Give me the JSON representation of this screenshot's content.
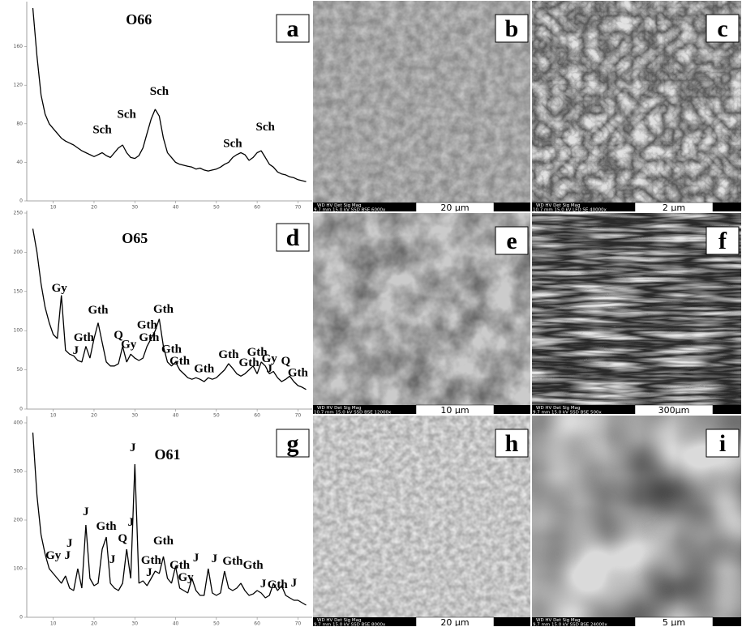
{
  "chart_data": [
    {
      "type": "line",
      "panel": "a",
      "title": "O66",
      "x": [
        5,
        6,
        7,
        8,
        9,
        10,
        11,
        12,
        13,
        14,
        15,
        16,
        17,
        18,
        19,
        20,
        21,
        22,
        23,
        24,
        25,
        26,
        27,
        28,
        29,
        30,
        31,
        32,
        33,
        34,
        35,
        36,
        37,
        38,
        39,
        40,
        41,
        42,
        43,
        44,
        45,
        46,
        47,
        48,
        49,
        50,
        51,
        52,
        53,
        54,
        55,
        56,
        57,
        58,
        59,
        60,
        61,
        62,
        63,
        64,
        65,
        66,
        67,
        68,
        69,
        70,
        71,
        72
      ],
      "series": [
        {
          "color": "#000000",
          "values": [
            200,
            150,
            110,
            90,
            80,
            75,
            70,
            65,
            62,
            60,
            58,
            55,
            52,
            50,
            48,
            46,
            48,
            50,
            47,
            45,
            50,
            55,
            58,
            50,
            45,
            44,
            47,
            55,
            70,
            85,
            95,
            88,
            65,
            50,
            45,
            40,
            38,
            37,
            36,
            35,
            33,
            34,
            32,
            31,
            32,
            33,
            35,
            38,
            40,
            45,
            48,
            50,
            48,
            42,
            45,
            50,
            52,
            45,
            38,
            35,
            30,
            28,
            27,
            25,
            24,
            22,
            21,
            20
          ]
        }
      ],
      "xlim": [
        3.5,
        73.5
      ],
      "ylim": [
        0,
        200
      ],
      "xticks": [
        10,
        20,
        30,
        40,
        50,
        60,
        70
      ],
      "yticks": [
        0,
        40,
        80,
        120,
        160
      ],
      "annotations": [
        {
          "text": "Sch",
          "x": 22,
          "y": 70
        },
        {
          "text": "Sch",
          "x": 28,
          "y": 86
        },
        {
          "text": "Sch",
          "x": 36,
          "y": 110
        },
        {
          "text": "Sch",
          "x": 54,
          "y": 56
        },
        {
          "text": "Sch",
          "x": 62,
          "y": 73
        }
      ],
      "title_pos": {
        "x": 31,
        "y": 183
      }
    },
    {
      "type": "line",
      "panel": "d",
      "title": "O65",
      "x": [
        5,
        6,
        7,
        8,
        9,
        10,
        11,
        12,
        13,
        14,
        15,
        16,
        17,
        18,
        19,
        20,
        21,
        22,
        23,
        24,
        25,
        26,
        27,
        28,
        29,
        30,
        31,
        32,
        33,
        34,
        35,
        36,
        37,
        38,
        39,
        40,
        41,
        42,
        43,
        44,
        45,
        46,
        47,
        48,
        49,
        50,
        51,
        52,
        53,
        54,
        55,
        56,
        57,
        58,
        59,
        60,
        61,
        62,
        63,
        64,
        65,
        66,
        67,
        68,
        69,
        70,
        71,
        72
      ],
      "series": [
        {
          "color": "#000000",
          "values": [
            230,
            200,
            160,
            130,
            110,
            95,
            90,
            145,
            75,
            70,
            68,
            62,
            60,
            80,
            65,
            90,
            110,
            85,
            60,
            55,
            55,
            58,
            80,
            60,
            70,
            65,
            62,
            65,
            80,
            90,
            100,
            115,
            80,
            60,
            55,
            60,
            50,
            45,
            40,
            38,
            40,
            38,
            35,
            40,
            38,
            40,
            45,
            50,
            58,
            52,
            45,
            42,
            45,
            50,
            55,
            45,
            60,
            55,
            45,
            48,
            40,
            35,
            38,
            42,
            35,
            30,
            28,
            25
          ]
        }
      ],
      "xlim": [
        3.5,
        73.5
      ],
      "ylim": [
        0,
        250
      ],
      "xticks": [
        10,
        20,
        30,
        40,
        50,
        60,
        70
      ],
      "yticks": [
        0,
        50,
        100,
        150,
        200,
        250
      ],
      "annotations": [
        {
          "text": "Gy",
          "x": 11.5,
          "y": 150
        },
        {
          "text": "Gth",
          "x": 17.5,
          "y": 87
        },
        {
          "text": "J",
          "x": 15.5,
          "y": 70
        },
        {
          "text": "Gth",
          "x": 21,
          "y": 122
        },
        {
          "text": "Q",
          "x": 26,
          "y": 90
        },
        {
          "text": "Gy",
          "x": 28.5,
          "y": 78
        },
        {
          "text": "Gth",
          "x": 33,
          "y": 103
        },
        {
          "text": "Gth",
          "x": 33.5,
          "y": 87
        },
        {
          "text": "Gth",
          "x": 37,
          "y": 123
        },
        {
          "text": "Gth",
          "x": 39,
          "y": 72
        },
        {
          "text": "Gth",
          "x": 41,
          "y": 57
        },
        {
          "text": "Gth",
          "x": 47,
          "y": 47
        },
        {
          "text": "Gth",
          "x": 53,
          "y": 65
        },
        {
          "text": "Gth",
          "x": 58,
          "y": 55
        },
        {
          "text": "Gth",
          "x": 60,
          "y": 68
        },
        {
          "text": "Gy",
          "x": 63,
          "y": 60
        },
        {
          "text": "J",
          "x": 63,
          "y": 47
        },
        {
          "text": "Q",
          "x": 67,
          "y": 57
        },
        {
          "text": "Gth",
          "x": 70,
          "y": 42
        }
      ],
      "title_pos": {
        "x": 30,
        "y": 212
      }
    },
    {
      "type": "line",
      "panel": "g",
      "title": "O61",
      "x": [
        5,
        6,
        7,
        8,
        9,
        10,
        11,
        12,
        13,
        14,
        15,
        16,
        17,
        18,
        19,
        20,
        21,
        22,
        23,
        24,
        25,
        26,
        27,
        28,
        29,
        30,
        31,
        32,
        33,
        34,
        35,
        36,
        37,
        38,
        39,
        40,
        41,
        42,
        43,
        44,
        45,
        46,
        47,
        48,
        49,
        50,
        51,
        52,
        53,
        54,
        55,
        56,
        57,
        58,
        59,
        60,
        61,
        62,
        63,
        64,
        65,
        66,
        67,
        68,
        69,
        70,
        71,
        72
      ],
      "series": [
        {
          "color": "#000000",
          "values": [
            380,
            250,
            170,
            130,
            100,
            90,
            80,
            70,
            85,
            60,
            55,
            100,
            60,
            190,
            80,
            65,
            70,
            140,
            165,
            70,
            60,
            55,
            70,
            140,
            80,
            315,
            70,
            75,
            65,
            80,
            95,
            90,
            125,
            80,
            70,
            105,
            60,
            55,
            50,
            80,
            55,
            45,
            45,
            100,
            50,
            45,
            50,
            95,
            60,
            55,
            60,
            70,
            55,
            45,
            48,
            55,
            50,
            40,
            45,
            70,
            55,
            65,
            45,
            40,
            35,
            35,
            30,
            25
          ]
        }
      ],
      "xlim": [
        3.5,
        73.5
      ],
      "ylim": [
        0,
        400
      ],
      "xticks": [
        10,
        20,
        30,
        40,
        50,
        60,
        70
      ],
      "yticks": [
        0,
        100,
        200,
        300,
        400
      ],
      "annotations": [
        {
          "text": "J",
          "x": 29.5,
          "y": 342
        },
        {
          "text": "Gy",
          "x": 10,
          "y": 120
        },
        {
          "text": "J",
          "x": 13.5,
          "y": 120
        },
        {
          "text": "J",
          "x": 14,
          "y": 145
        },
        {
          "text": "J",
          "x": 18,
          "y": 210
        },
        {
          "text": "Gth",
          "x": 23,
          "y": 180
        },
        {
          "text": "Q",
          "x": 27,
          "y": 155
        },
        {
          "text": "J",
          "x": 29,
          "y": 188
        },
        {
          "text": "J",
          "x": 24.5,
          "y": 112
        },
        {
          "text": "Gth",
          "x": 37,
          "y": 150
        },
        {
          "text": "Gth",
          "x": 34,
          "y": 110
        },
        {
          "text": "J",
          "x": 33.5,
          "y": 85
        },
        {
          "text": "Gth",
          "x": 41,
          "y": 100
        },
        {
          "text": "Gy",
          "x": 42.5,
          "y": 75
        },
        {
          "text": "J",
          "x": 45,
          "y": 115
        },
        {
          "text": "J",
          "x": 49.5,
          "y": 113
        },
        {
          "text": "Gth",
          "x": 54,
          "y": 108
        },
        {
          "text": "Gth",
          "x": 59,
          "y": 100
        },
        {
          "text": "J",
          "x": 61.5,
          "y": 62
        },
        {
          "text": "Gth",
          "x": 65,
          "y": 60
        },
        {
          "text": "J",
          "x": 69,
          "y": 63
        }
      ],
      "title_pos": {
        "x": 38,
        "y": 325
      }
    }
  ],
  "images": [
    {
      "panel": "b",
      "header": "WD     HV     Det  Sig  Mag",
      "settings": "9.7 mm 15.0 kV SSD BSE 6000x",
      "scale": "20 µm"
    },
    {
      "panel": "c",
      "header": "WD     HV     Det  Sig  Mag",
      "settings": "10.7 mm 15.0 kV LFD SE 40000x",
      "scale": "2 µm"
    },
    {
      "panel": "e",
      "header": "WD     HV     Det  Sig  Mag",
      "settings": "10.7 mm 15.0 kV SSD BSE 12000x",
      "scale": "10 µm"
    },
    {
      "panel": "f",
      "header": "WD     HV     Det  Sig  Mag",
      "settings": "9.7 mm 15.0 kV SSD BSE 500x",
      "scale": "300µm"
    },
    {
      "panel": "h",
      "header": "WD     HV     Det  Sig  Mag",
      "settings": "9.7 mm 15.0 kV SSD BSE 8000x",
      "scale": "20 µm"
    },
    {
      "panel": "i",
      "header": "WD     HV     Det  Sig  Mag",
      "settings": "9.7 mm 15.0 kV SSD BSE 24000x",
      "scale": "5 µm"
    }
  ]
}
